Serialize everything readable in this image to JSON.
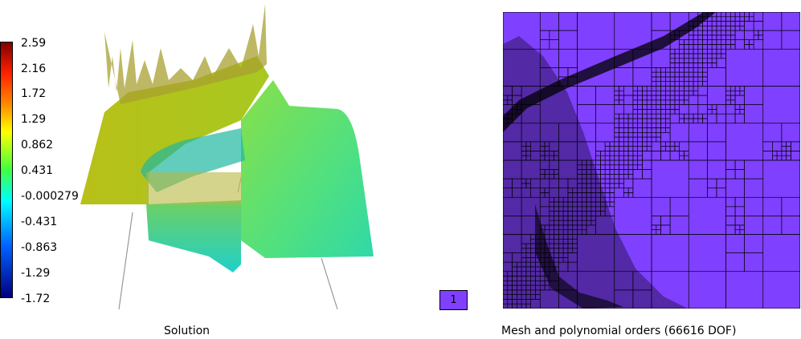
{
  "colorbar": {
    "ticks": [
      "2.59",
      "2.16",
      "1.72",
      "1.29",
      "0.862",
      "0.431",
      "-0.000279",
      "-0.431",
      "-0.863",
      "-1.29",
      "-1.72"
    ]
  },
  "order_legend": {
    "label": "1",
    "color": "#8040ff"
  },
  "captions": {
    "solution": "Solution",
    "mesh": "Mesh and polynomial orders (66616 DOF)"
  },
  "colors": {
    "mesh_fill": "#8040ff",
    "mesh_lines": "#000000"
  }
}
